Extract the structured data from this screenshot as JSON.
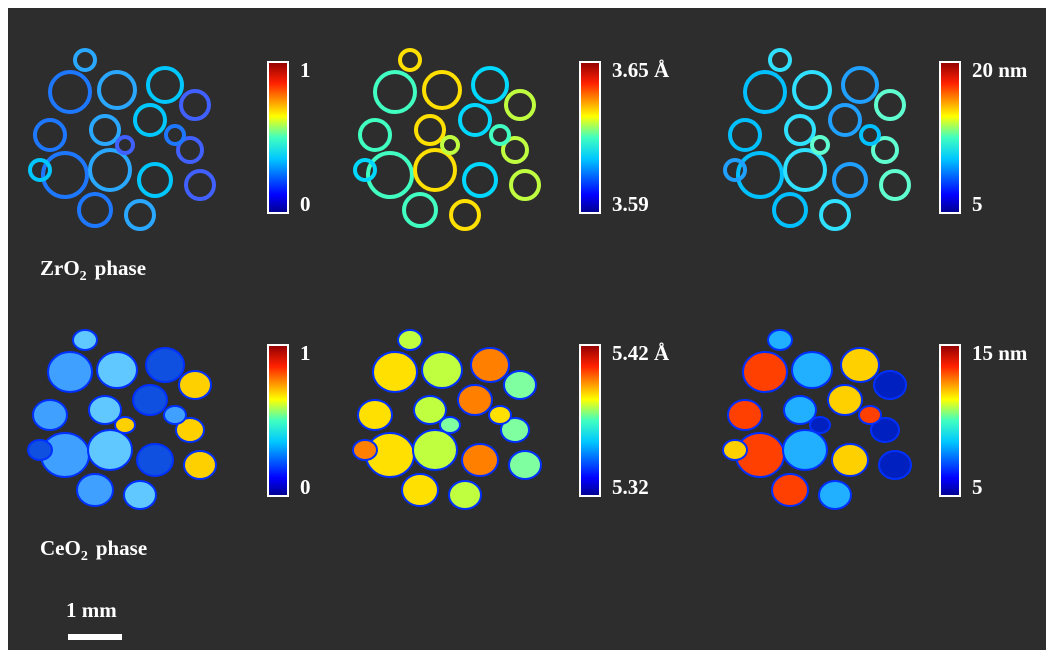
{
  "rows": [
    {
      "label": {
        "main": "ZrO",
        "sub": "2",
        "rest": "phase"
      },
      "panels": [
        {
          "max": "1",
          "min": "0"
        },
        {
          "max": "3.65 Å",
          "min": "3.59"
        },
        {
          "max": "20 nm",
          "min": "5"
        }
      ]
    },
    {
      "label": {
        "main": "CeO",
        "sub": "2",
        "rest": "phase"
      },
      "panels": [
        {
          "max": "1",
          "min": "0"
        },
        {
          "max": "5.42 Å",
          "min": "5.32"
        },
        {
          "max": "15 nm",
          "min": "5"
        }
      ]
    }
  ],
  "scale_bar": "1 mm"
}
